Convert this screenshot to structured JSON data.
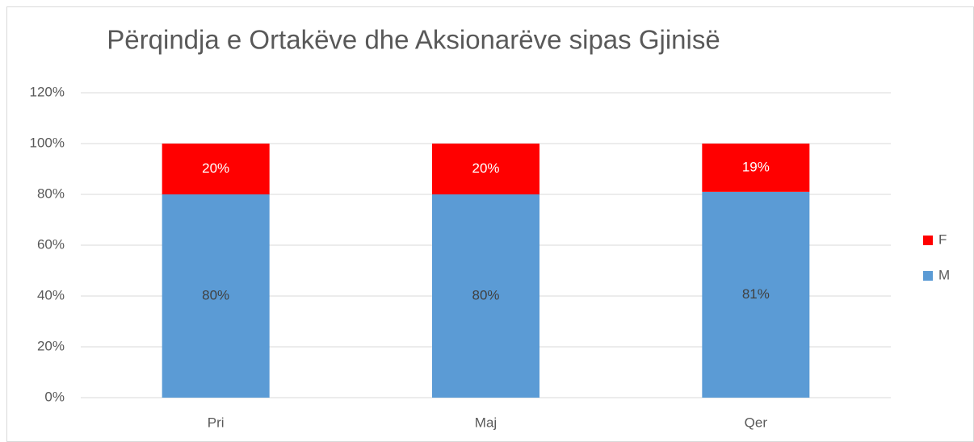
{
  "chart_data": {
    "type": "stacked_bar",
    "title": "Përqindja e Ortakëve dhe Aksionarëve sipas Gjinisë",
    "categories": [
      "Pri",
      "Maj",
      "Qer"
    ],
    "series": [
      {
        "name": "M",
        "color": "#5b9bd5",
        "values": [
          80,
          80,
          81
        ],
        "value_labels": [
          "80%",
          "80%",
          "81%"
        ]
      },
      {
        "name": "F",
        "color": "#ff0000",
        "values": [
          20,
          20,
          19
        ],
        "value_labels": [
          "20%",
          "20%",
          "19%"
        ]
      }
    ],
    "ylim": [
      0,
      120
    ],
    "yticks": [
      {
        "value": 0,
        "label": "0%"
      },
      {
        "value": 20,
        "label": "20%"
      },
      {
        "value": 40,
        "label": "40%"
      },
      {
        "value": 60,
        "label": "60%"
      },
      {
        "value": 80,
        "label": "80%"
      },
      {
        "value": 100,
        "label": "100%"
      },
      {
        "value": 120,
        "label": "120%"
      }
    ],
    "grid": true,
    "legend": "right"
  }
}
